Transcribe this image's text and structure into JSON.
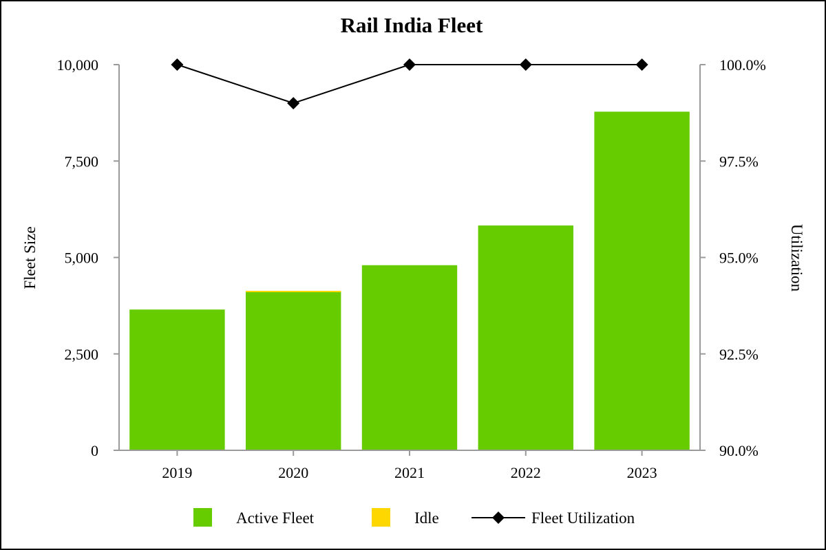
{
  "chart_data": {
    "type": "bar",
    "title": "Rail India Fleet",
    "categories": [
      "2019",
      "2020",
      "2021",
      "2022",
      "2023"
    ],
    "stacked": true,
    "series": [
      {
        "name": "Active Fleet",
        "kind": "bar",
        "axis": "left",
        "color": "#66cc00",
        "values": [
          3650,
          4100,
          4800,
          5830,
          8780
        ]
      },
      {
        "name": "Idle",
        "kind": "bar",
        "axis": "left",
        "color": "#ffd700",
        "values": [
          0,
          35,
          0,
          0,
          0
        ]
      },
      {
        "name": "Fleet Utilization",
        "kind": "line",
        "axis": "right",
        "color": "#000000",
        "marker": "diamond",
        "values": [
          100.0,
          99.0,
          100.0,
          100.0,
          100.0
        ]
      }
    ],
    "ylabel": "Fleet Size",
    "ylim": [
      0,
      10000
    ],
    "yticks": [
      0,
      2500,
      5000,
      7500,
      10000
    ],
    "ytick_labels": [
      "0",
      "2,500",
      "5,000",
      "7,500",
      "10,000"
    ],
    "y2label": "Utilization",
    "y2lim": [
      90.0,
      100.0
    ],
    "y2ticks": [
      90.0,
      92.5,
      95.0,
      97.5,
      100.0
    ],
    "y2tick_labels": [
      "90.0%",
      "92.5%",
      "95.0%",
      "97.5%",
      "100.0%"
    ],
    "grid": false,
    "legend_position": "bottom"
  }
}
